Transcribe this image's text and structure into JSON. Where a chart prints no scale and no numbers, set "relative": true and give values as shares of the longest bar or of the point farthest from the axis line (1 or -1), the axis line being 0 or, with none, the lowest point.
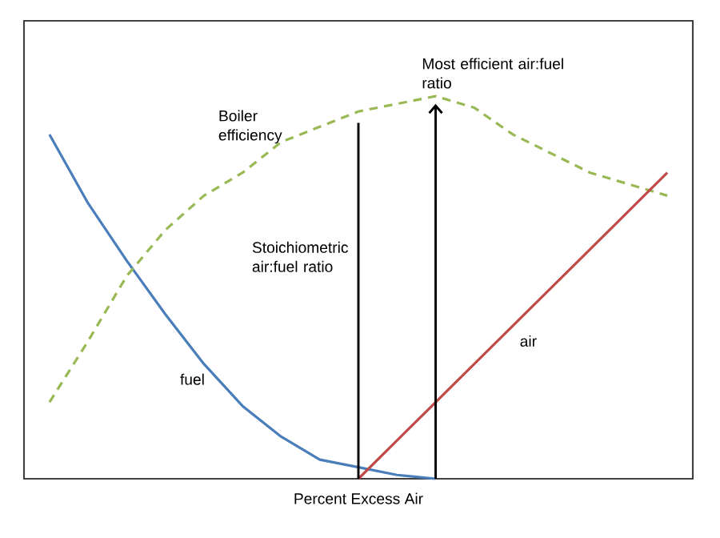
{
  "chart_data": {
    "type": "line",
    "relative": true,
    "xlabel": "Percent Excess Air",
    "categories": [
      null,
      null,
      null,
      null,
      null,
      null,
      null,
      null,
      null,
      null,
      null,
      null,
      null,
      null,
      null,
      null,
      null
    ],
    "series": [
      {
        "name": "fuel",
        "color": "#4a7ebb",
        "line_style": "solid",
        "values": [
          0.9,
          0.72,
          0.57,
          0.43,
          0.3,
          0.19,
          0.11,
          0.05,
          0.03,
          0.01,
          0,
          null,
          null,
          null,
          null,
          null,
          null
        ]
      },
      {
        "name": "Boiler efficiency",
        "color": "#98b954",
        "line_style": "dashed",
        "values": [
          0.2,
          0.36,
          0.53,
          0.65,
          0.74,
          0.8,
          0.88,
          0.92,
          0.96,
          0.98,
          1.0,
          0.97,
          0.9,
          0.85,
          0.8,
          0.77,
          0.74
        ]
      },
      {
        "name": "air",
        "color": "#be4b48",
        "line_style": "solid",
        "values": [
          null,
          null,
          null,
          null,
          null,
          null,
          null,
          null,
          0.0,
          0.1,
          0.2,
          0.3,
          0.4,
          0.5,
          0.6,
          0.7,
          0.8
        ]
      }
    ],
    "annotations": [
      "Stoichiometric air:fuel ratio",
      "Most efficient air:fuel ratio"
    ]
  }
}
